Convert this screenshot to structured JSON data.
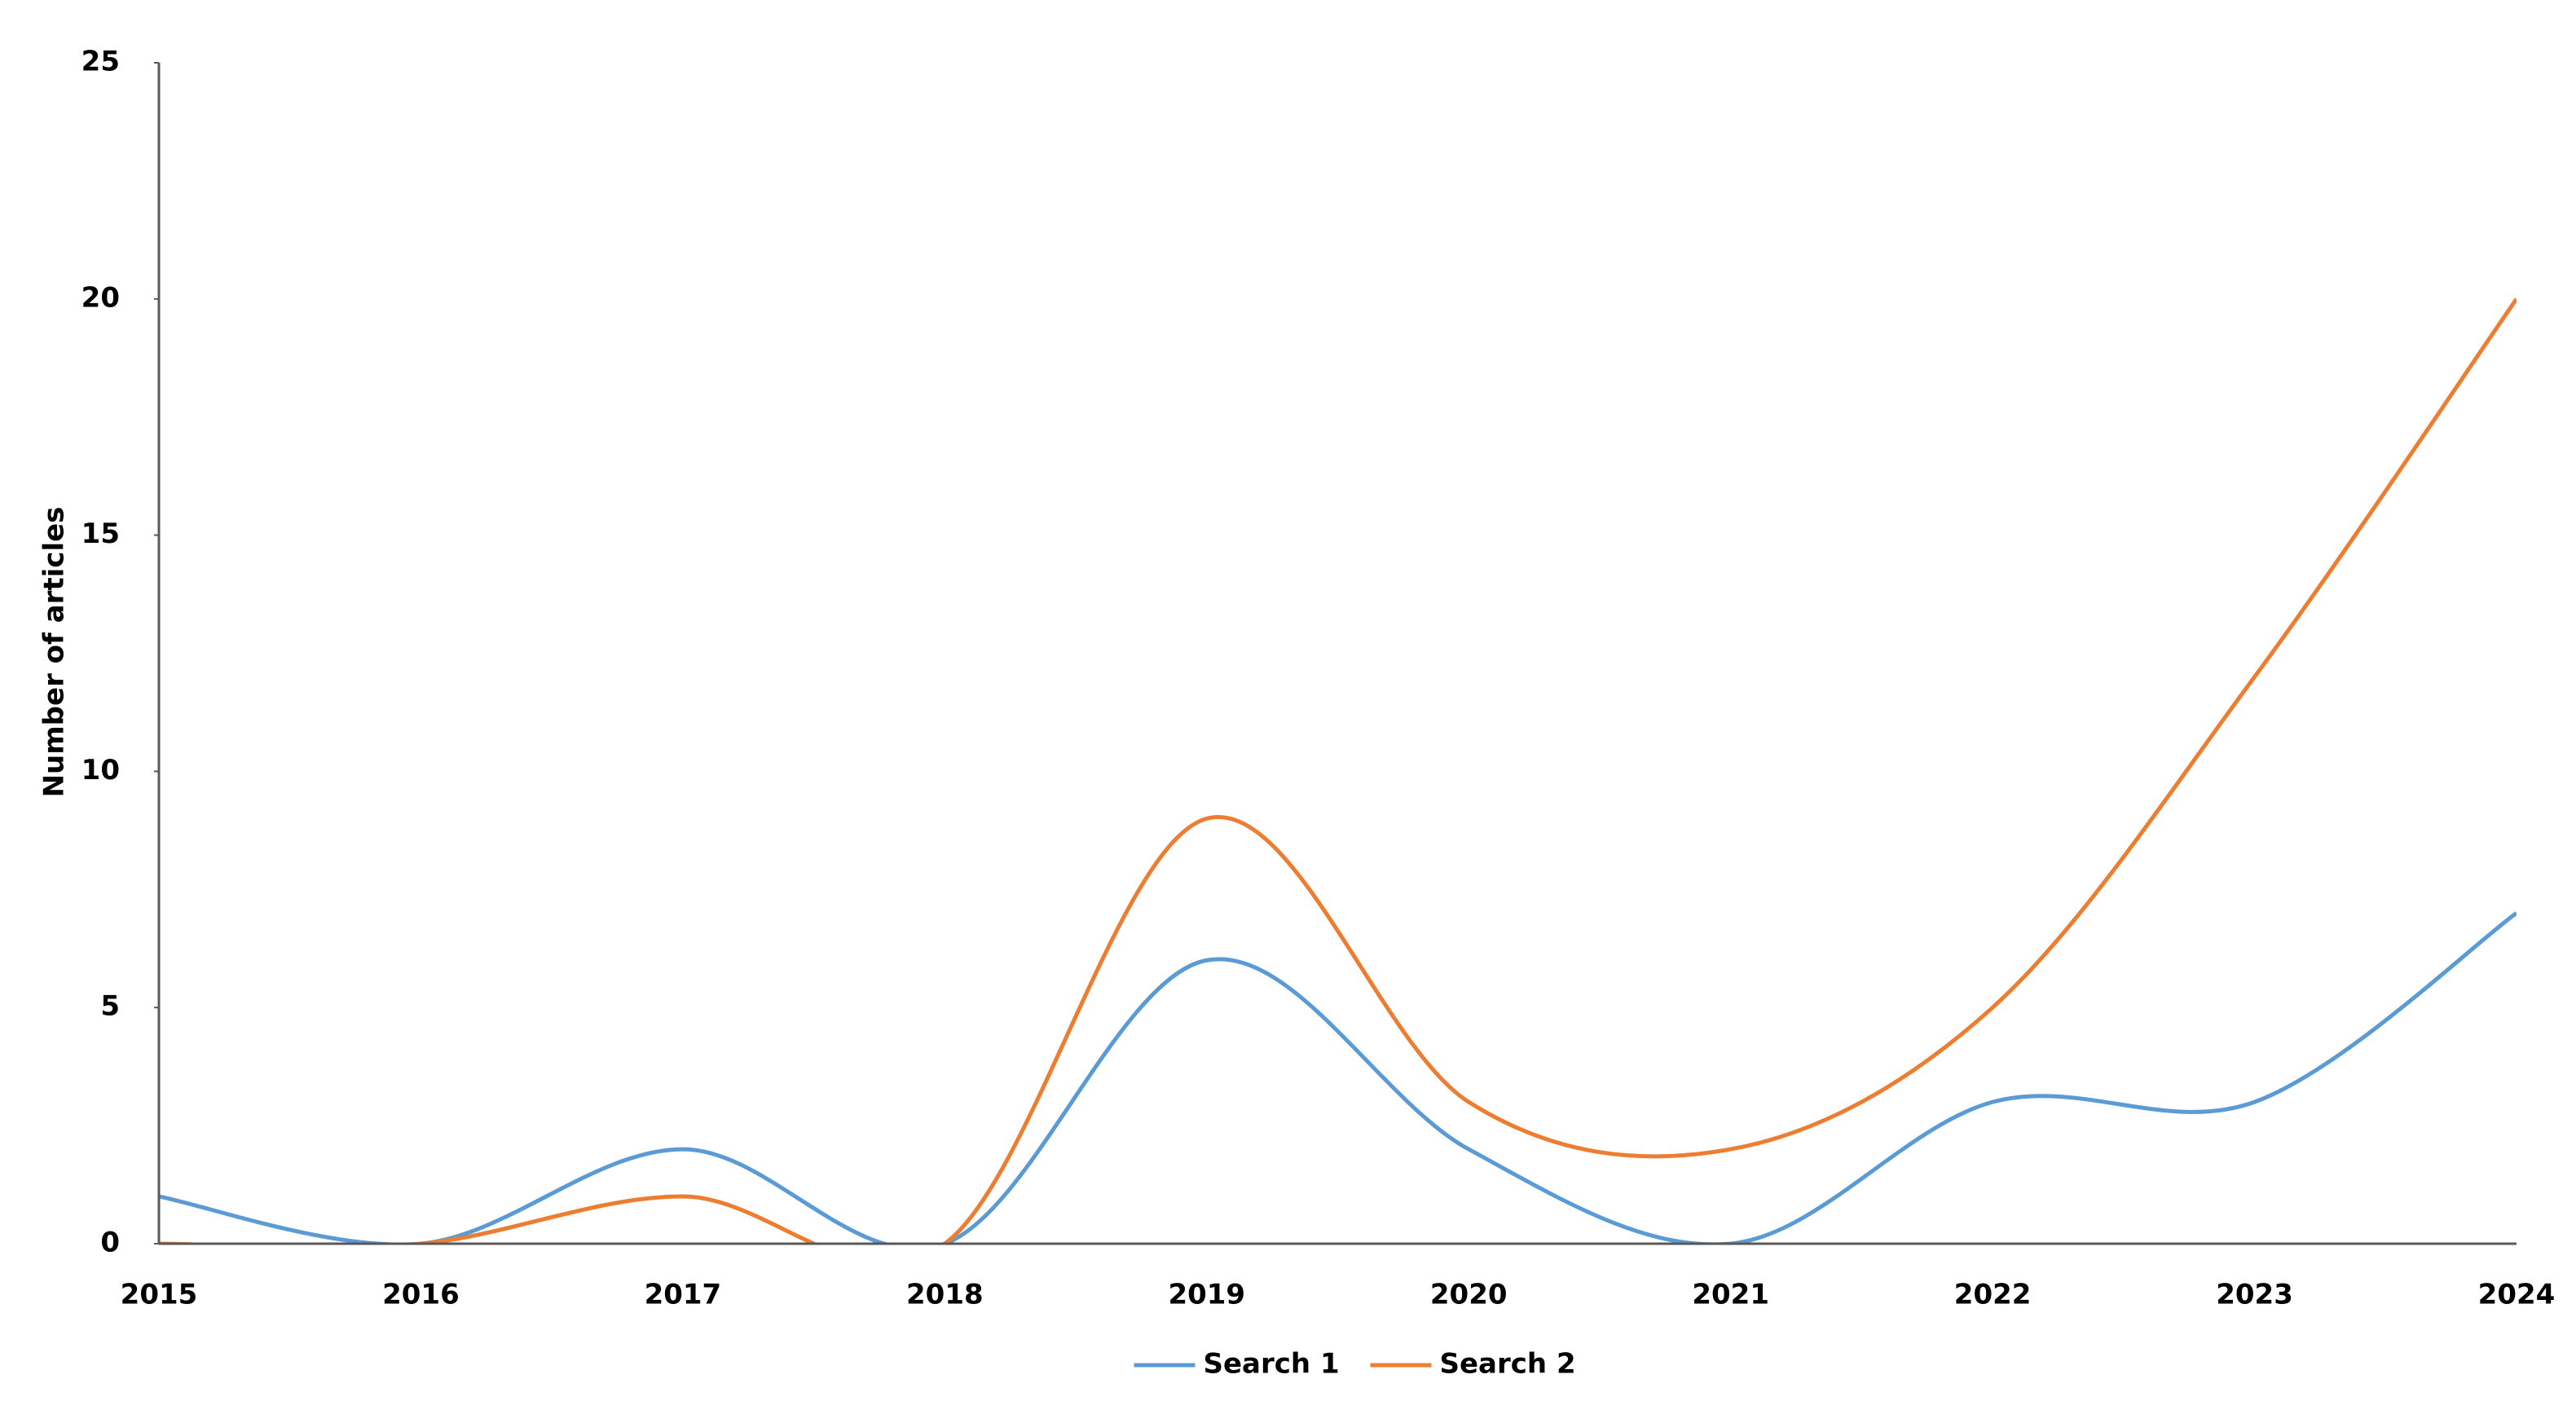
{
  "chart_data": {
    "type": "line",
    "y_label": "Number of articles",
    "categories": [
      "2015",
      "2016",
      "2017",
      "2018",
      "2019",
      "2020",
      "2021",
      "2022",
      "2023",
      "2024"
    ],
    "series": [
      {
        "name": "Search 1",
        "color": "#5b9bd5",
        "values": [
          1,
          0,
          2,
          0,
          6,
          2,
          0,
          3,
          3,
          7
        ]
      },
      {
        "name": "Search 2",
        "color": "#ed7d31",
        "values": [
          0,
          0,
          1,
          0,
          9,
          3,
          2,
          5,
          12,
          20
        ]
      }
    ],
    "ylim": [
      0,
      25
    ],
    "yticks": [
      0,
      5,
      10,
      15,
      20,
      25
    ],
    "smooth": true,
    "grid": false,
    "legend": "bottom"
  }
}
